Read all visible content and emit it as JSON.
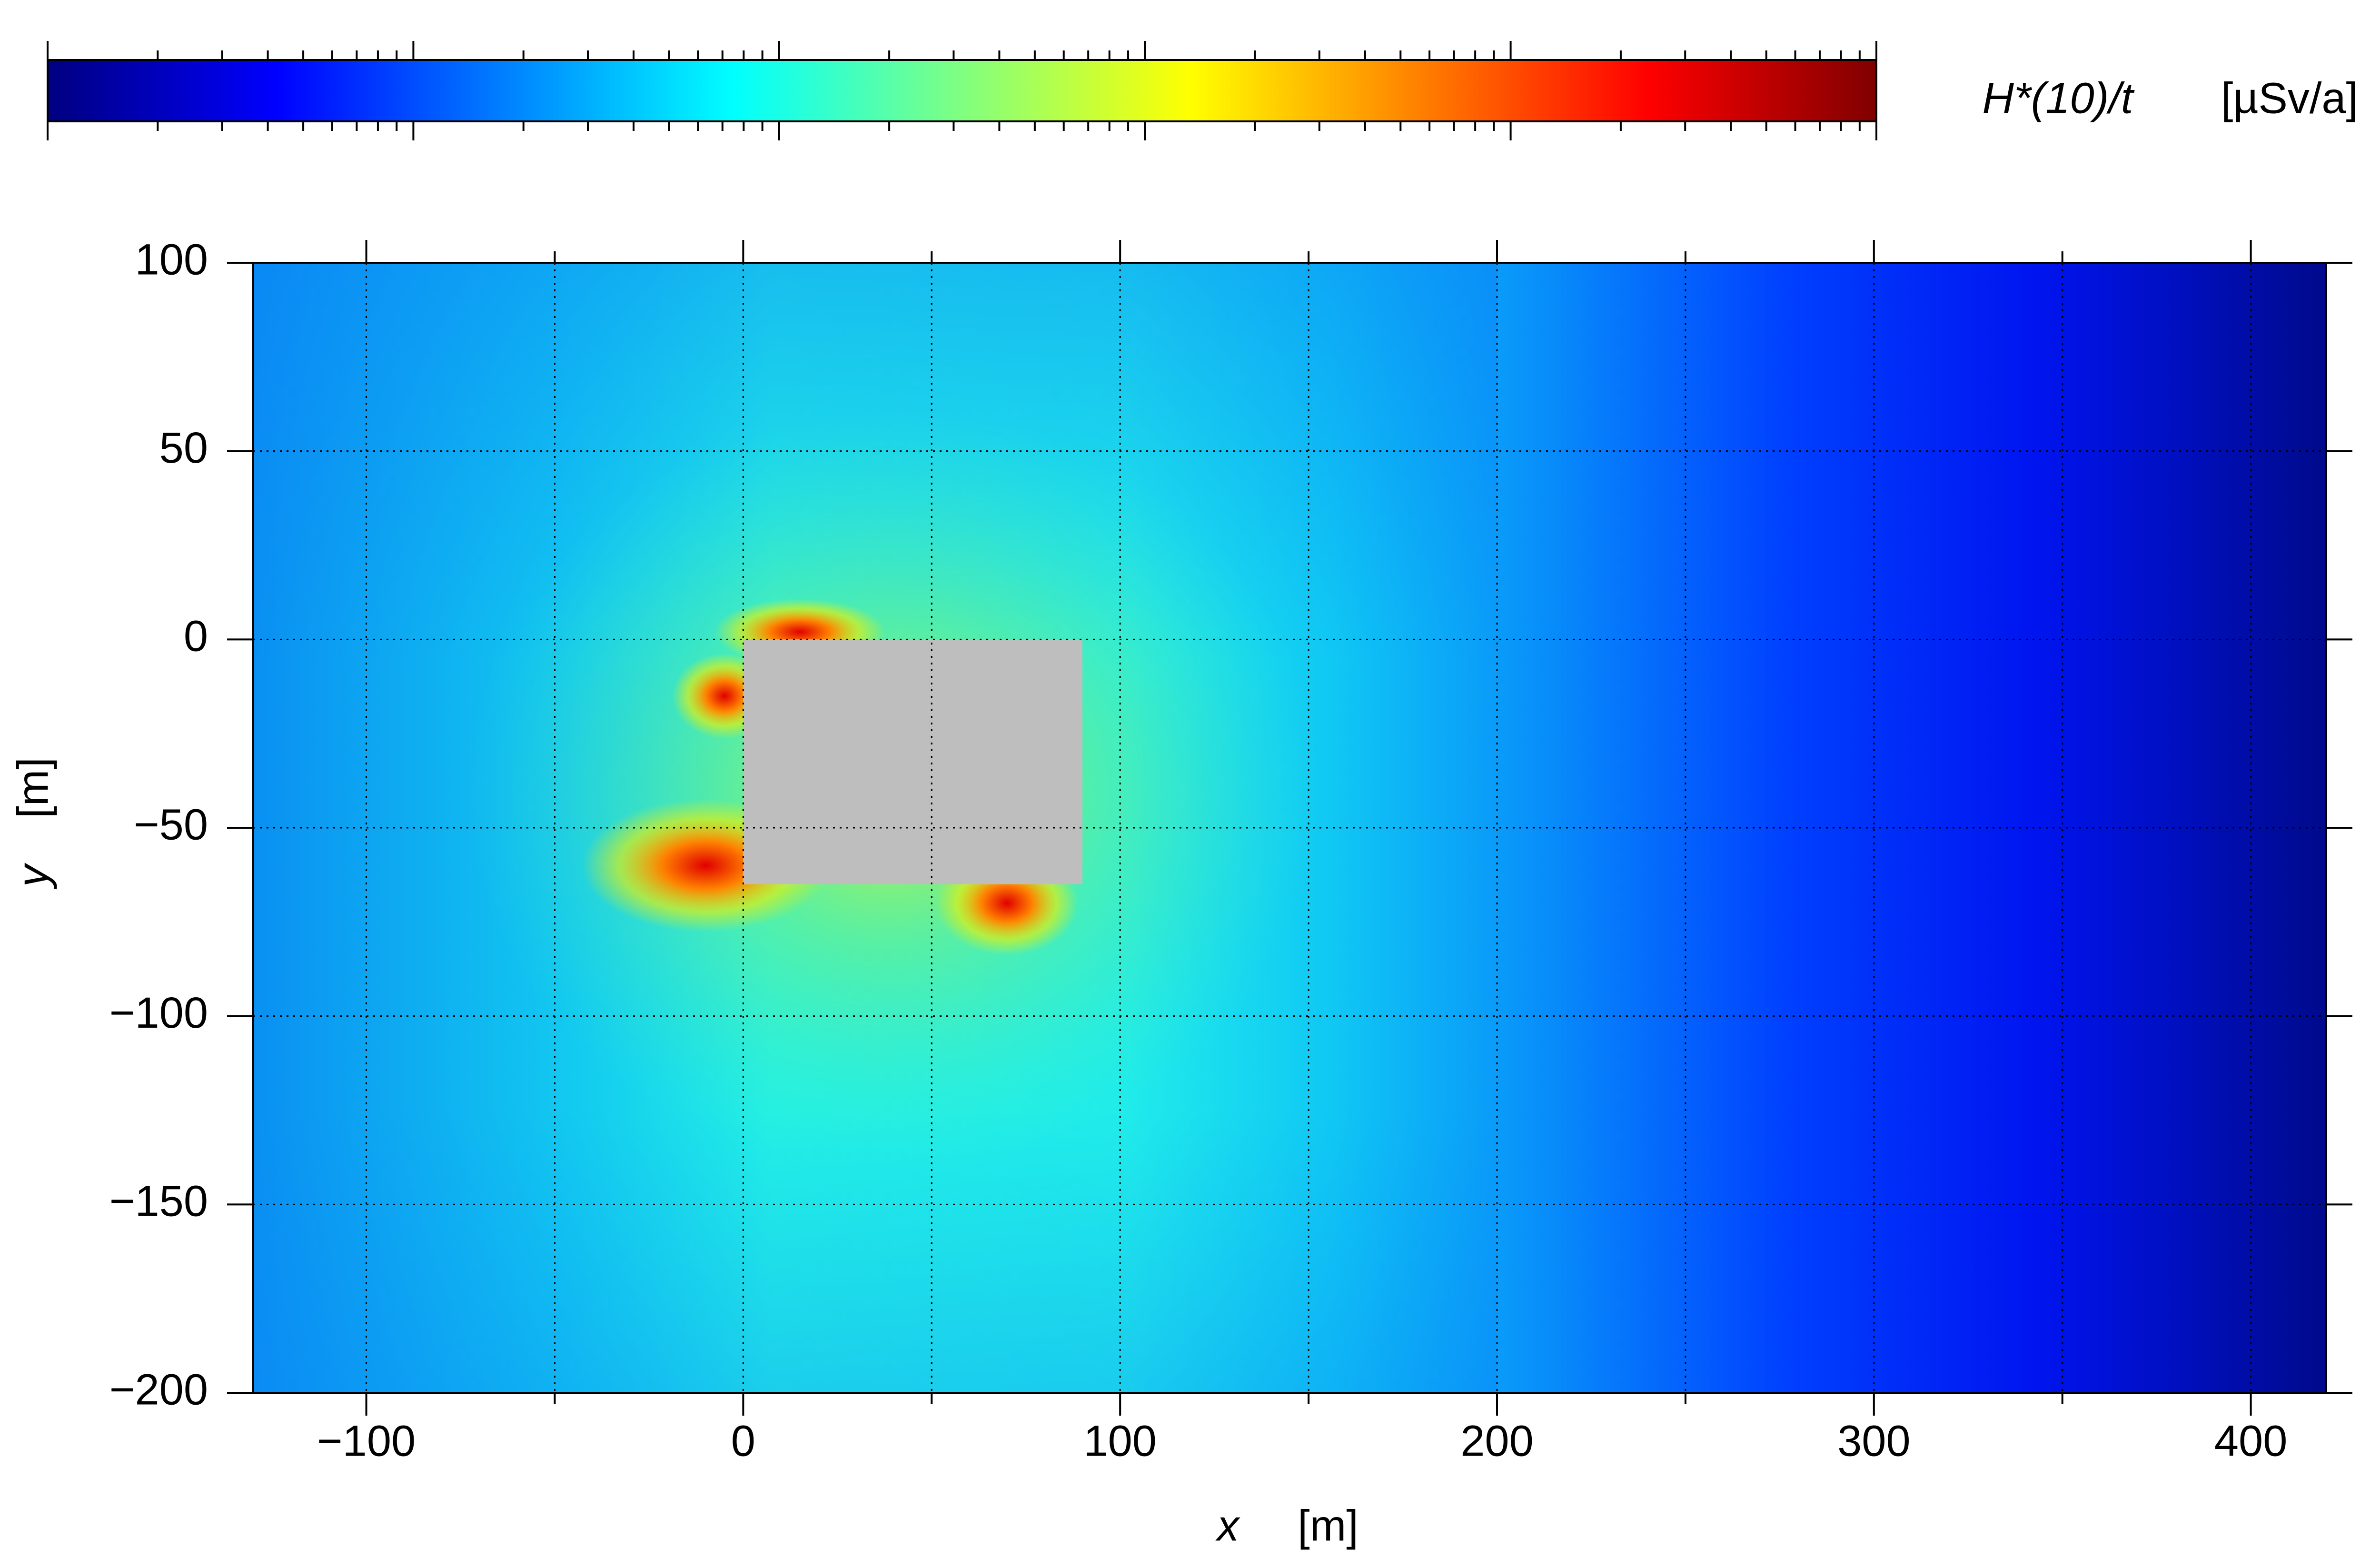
{
  "chart_data": {
    "type": "heatmap",
    "xlabel": "x",
    "xunit": "[m]",
    "ylabel": "y",
    "yunit": "[m]",
    "xlim": [
      -130,
      420
    ],
    "ylim": [
      -200,
      100
    ],
    "xticks": [
      {
        "value": -100,
        "label": "−100"
      },
      0,
      100,
      200,
      300,
      400
    ],
    "xminorticks": [
      -50,
      50,
      150,
      250,
      350
    ],
    "yticks": [
      {
        "value": -200,
        "label": "−200"
      },
      {
        "value": -150,
        "label": "−150"
      },
      {
        "value": -100,
        "label": "−100"
      },
      {
        "value": -50,
        "label": "−50"
      },
      0,
      50,
      100
    ],
    "grid": true,
    "obstacle": {
      "x": [
        0,
        90
      ],
      "y": [
        -65,
        0
      ],
      "color": "#bebebe"
    },
    "colorbar": {
      "label": "H*(10)/t",
      "unit": "[µSv/a]",
      "log_scale": true,
      "decades": 5,
      "colors": [
        "#000080",
        "#0000ff",
        "#0080ff",
        "#00ffff",
        "#80ff80",
        "#ffff00",
        "#ff8000",
        "#ff0000",
        "#800000"
      ]
    }
  }
}
